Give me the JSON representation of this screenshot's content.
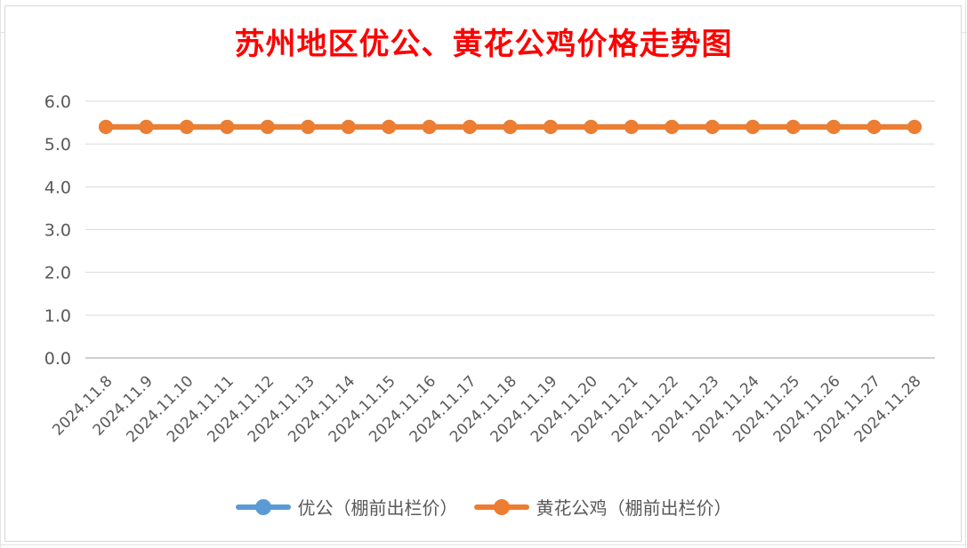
{
  "chart_data": {
    "type": "line",
    "title": "苏州地区优公、黄花公鸡价格走势图",
    "xlabel": "",
    "ylabel": "",
    "categories": [
      "2024.11.8",
      "2024.11.9",
      "2024.11.10",
      "2024.11.11",
      "2024.11.12",
      "2024.11.13",
      "2024.11.14",
      "2024.11.15",
      "2024.11.16",
      "2024.11.17",
      "2024.11.18",
      "2024.11.19",
      "2024.11.20",
      "2024.11.21",
      "2024.11.22",
      "2024.11.23",
      "2024.11.24",
      "2024.11.25",
      "2024.11.26",
      "2024.11.27",
      "2024.11.28"
    ],
    "series": [
      {
        "name": "优公（棚前出栏价）",
        "color": "#5b9bd5",
        "values": [
          5.4,
          5.4,
          5.4,
          5.4,
          5.4,
          5.4,
          5.4,
          5.4,
          5.4,
          5.4,
          5.4,
          5.4,
          5.4,
          5.4,
          5.4,
          5.4,
          5.4,
          5.4,
          5.4,
          5.4,
          5.4
        ]
      },
      {
        "name": "黄花公鸡（棚前出栏价）",
        "color": "#ed7d31",
        "values": [
          5.4,
          5.4,
          5.4,
          5.4,
          5.4,
          5.4,
          5.4,
          5.4,
          5.4,
          5.4,
          5.4,
          5.4,
          5.4,
          5.4,
          5.4,
          5.4,
          5.4,
          5.4,
          5.4,
          5.4,
          5.4
        ]
      }
    ],
    "ylim": [
      0,
      6
    ],
    "yticks": [
      "0.0",
      "1.0",
      "2.0",
      "3.0",
      "4.0",
      "5.0",
      "6.0"
    ],
    "grid": true,
    "legend_position": "bottom",
    "title_color": "#ff0000"
  }
}
